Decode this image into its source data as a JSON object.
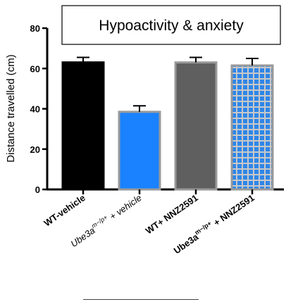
{
  "chart_data": {
    "type": "bar",
    "title": "Hypoactivity & anxiety",
    "xlabel": "",
    "ylabel": "Distance travelled (cm)",
    "ylim": [
      0,
      80
    ],
    "yticks": [
      "0",
      "20",
      "40",
      "60",
      "80"
    ],
    "grid": false,
    "categories": [
      "WT-vehicle",
      "Ube3a m−/p+ + vehicle",
      "WT+ NNZ2591",
      "Ube3a m−/p+ + NNZ2591"
    ],
    "category_parts": [
      {
        "main": "WT-vehicle",
        "sup": "",
        "rest": "",
        "italic": false
      },
      {
        "main": "Ube3a",
        "sup": "m−/p+",
        "rest": " + vehicle",
        "italic": true
      },
      {
        "main": "WT+ NNZ2591",
        "sup": "",
        "rest": "",
        "italic": false
      },
      {
        "main": "Ube3a",
        "sup": "m−/p+",
        "rest": " + NNZ2591",
        "italic": false
      }
    ],
    "values": [
      63,
      38.5,
      63,
      61.5
    ],
    "errors": [
      2.5,
      3,
      2.5,
      3.5
    ],
    "colors": [
      "#000000",
      "#1a82ff",
      "#5f5f5f",
      "#2f86e8"
    ],
    "pattern": [
      false,
      false,
      false,
      true
    ]
  }
}
